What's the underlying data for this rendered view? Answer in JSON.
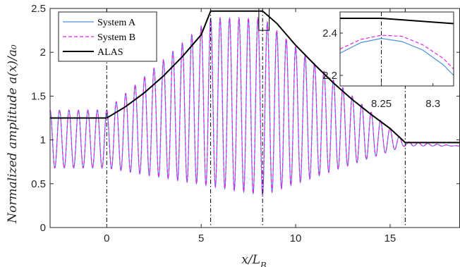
{
  "chart_data": {
    "type": "line",
    "xlabel": "x/L_B",
    "ylabel": "Normalized amplitude a(x)/a_0",
    "xlim": [
      -3,
      18.7
    ],
    "ylim": [
      0,
      2.5
    ],
    "xticks": [
      0,
      5,
      10,
      15
    ],
    "yticks": [
      0,
      0.5,
      1,
      1.5,
      2,
      2.5
    ],
    "xtick_labels": [
      "0",
      "5",
      "10",
      "15"
    ],
    "ytick_labels": [
      "0",
      "0.5",
      "1",
      "1.5",
      "2",
      "2.5"
    ],
    "grid": false,
    "legend_position": "top-left",
    "vertical_markers": [
      0,
      5.5,
      8.25,
      15.8
    ],
    "series": [
      {
        "name": "System A",
        "color": "#4a90d9",
        "style": "solid",
        "oscillation_period": 0.5,
        "envelope_upper": [
          [
            -3,
            1.34
          ],
          [
            0,
            1.34
          ],
          [
            5.5,
            2.39
          ],
          [
            8.25,
            2.38
          ],
          [
            15.8,
            0.98
          ],
          [
            18.7,
            0.93
          ]
        ],
        "envelope_lower": [
          [
            -3,
            0.68
          ],
          [
            0,
            0.68
          ],
          [
            8.25,
            0.37
          ],
          [
            15.8,
            0.93
          ],
          [
            18.7,
            0.93
          ]
        ]
      },
      {
        "name": "System B",
        "color": "#e620e6",
        "style": "dashed",
        "oscillation_period": 0.5,
        "envelope_upper": [
          [
            -3,
            1.34
          ],
          [
            0,
            1.34
          ],
          [
            5.5,
            2.39
          ],
          [
            8.25,
            2.39
          ],
          [
            15.8,
            0.98
          ],
          [
            18.7,
            0.93
          ]
        ],
        "envelope_lower": [
          [
            -3,
            0.68
          ],
          [
            0,
            0.68
          ],
          [
            8.25,
            0.37
          ],
          [
            15.8,
            0.93
          ],
          [
            18.7,
            0.93
          ]
        ]
      },
      {
        "name": "ALAS",
        "color": "#000000",
        "style": "solid",
        "x": [
          -3,
          0,
          1,
          2,
          3,
          4,
          5,
          5.5,
          8.25,
          9,
          10,
          11,
          12,
          13,
          14,
          15,
          15.8,
          18.7
        ],
        "y": [
          1.25,
          1.25,
          1.38,
          1.54,
          1.73,
          1.95,
          2.2,
          2.47,
          2.47,
          2.33,
          2.08,
          1.86,
          1.65,
          1.46,
          1.29,
          1.13,
          0.97,
          0.97
        ]
      }
    ],
    "inset": {
      "xlim": [
        8.21,
        8.32
      ],
      "ylim": [
        2.15,
        2.5
      ],
      "xticks": [
        8.25,
        8.3
      ],
      "yticks": [
        2.2,
        2.4
      ],
      "xtick_labels": [
        "8.25",
        "8.3"
      ],
      "ytick_labels": [
        "2.2",
        "2.4"
      ],
      "vertical_marker": 8.25,
      "series": [
        {
          "name": "System A",
          "x": [
            8.21,
            8.23,
            8.25,
            8.27,
            8.29,
            8.31,
            8.32
          ],
          "y": [
            2.305,
            2.355,
            2.375,
            2.36,
            2.32,
            2.25,
            2.2
          ]
        },
        {
          "name": "System B",
          "x": [
            8.21,
            8.23,
            8.25,
            8.27,
            8.29,
            8.31,
            8.32
          ],
          "y": [
            2.325,
            2.37,
            2.39,
            2.385,
            2.345,
            2.28,
            2.23
          ]
        },
        {
          "name": "ALAS",
          "x": [
            8.21,
            8.25,
            8.32
          ],
          "y": [
            2.47,
            2.47,
            2.445
          ]
        }
      ]
    }
  }
}
